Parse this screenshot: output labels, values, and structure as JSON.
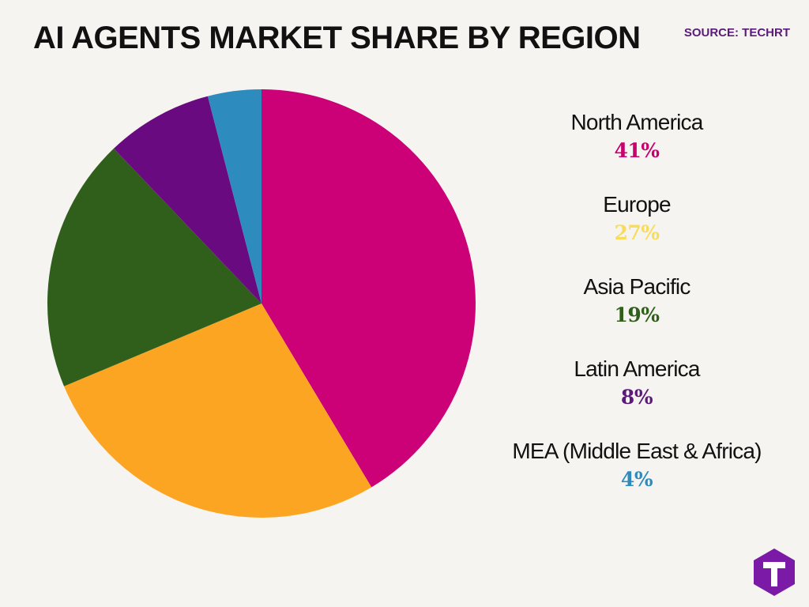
{
  "header": {
    "title": "AI AGENTS MARKET SHARE BY REGION",
    "source": "SOURCE: TECHRT"
  },
  "chart_data": {
    "type": "pie",
    "title": "AI AGENTS MARKET SHARE BY REGION",
    "start_angle": "12 o'clock",
    "direction": "clockwise",
    "legend_position": "right",
    "slices": [
      {
        "label": "North America",
        "value": 41,
        "display": "41%",
        "color": "#cc0077"
      },
      {
        "label": "Europe",
        "value": 27,
        "display": "27%",
        "color": "#fca522"
      },
      {
        "label": "Asia Pacific",
        "value": 19,
        "display": "19%",
        "color": "#2f5f1a"
      },
      {
        "label": "Latin America",
        "value": 8,
        "display": "8%",
        "color": "#6a0a80"
      },
      {
        "label": "MEA (Middle East & Africa)",
        "value": 4,
        "display": "4%",
        "color": "#2e8bbe"
      }
    ],
    "legend_value_colors": [
      "#c8006e",
      "#f8dc5c",
      "#2f5f1a",
      "#5b1a7a",
      "#2e8bbe"
    ]
  },
  "logo": {
    "letter": "T",
    "color": "#7a1aa6"
  }
}
